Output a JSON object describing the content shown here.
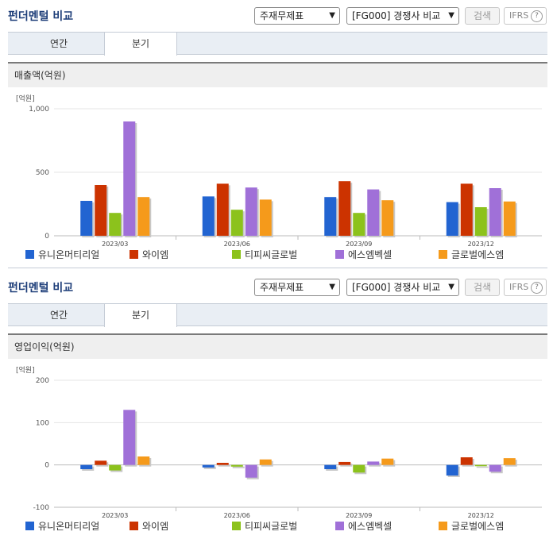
{
  "sections": [
    {
      "header": {
        "title": "펀더멘털 비교",
        "select1": "주재무제표",
        "select2": "[FG000] 경쟁사 비교",
        "search_label": "검색",
        "ifrs_label": "IFRS",
        "help": "?"
      },
      "tabs": [
        {
          "label": "연간",
          "active": false
        },
        {
          "label": "분기",
          "active": true
        }
      ],
      "subtitle": "매출액(억원)",
      "chart_data": {
        "type": "bar",
        "unit_label": "[억원]",
        "categories": [
          "2023/03",
          "2023/06",
          "2023/09",
          "2023/12"
        ],
        "ylim": [
          0,
          1000
        ],
        "yticks": [
          0,
          500,
          1000
        ],
        "ytick_labels": [
          "0",
          "500",
          "1,000"
        ],
        "legend_position": "bottom",
        "series": [
          {
            "name": "유니온머티리얼",
            "color": "#2264d1",
            "values": [
              275,
              310,
              305,
              265
            ]
          },
          {
            "name": "와이엠",
            "color": "#cc3300",
            "values": [
              400,
              410,
              430,
              410
            ]
          },
          {
            "name": "티피씨글로벌",
            "color": "#8cc21c",
            "values": [
              180,
              205,
              180,
              225
            ]
          },
          {
            "name": "에스엠벡셀",
            "color": "#a070d8",
            "values": [
              900,
              380,
              365,
              375
            ]
          },
          {
            "name": "글로벌에스엠",
            "color": "#f59a1b",
            "values": [
              305,
              285,
              280,
              270
            ]
          }
        ]
      }
    },
    {
      "header": {
        "title": "펀더멘털 비교",
        "select1": "주재무제표",
        "select2": "[FG000] 경쟁사 비교",
        "search_label": "검색",
        "ifrs_label": "IFRS",
        "help": "?"
      },
      "tabs": [
        {
          "label": "연간",
          "active": false
        },
        {
          "label": "분기",
          "active": true
        }
      ],
      "subtitle": "영업이익(억원)",
      "chart_data": {
        "type": "bar",
        "unit_label": "[억원]",
        "categories": [
          "2023/03",
          "2023/06",
          "2023/09",
          "2023/12"
        ],
        "ylim": [
          -100,
          200
        ],
        "yticks": [
          -100,
          0,
          100,
          200
        ],
        "ytick_labels": [
          "-100",
          "0",
          "100",
          "200"
        ],
        "legend_position": "bottom",
        "series": [
          {
            "name": "유니온머티리얼",
            "color": "#2264d1",
            "values": [
              -10,
              -6,
              -10,
              -25
            ]
          },
          {
            "name": "와이엠",
            "color": "#cc3300",
            "values": [
              10,
              5,
              7,
              18
            ]
          },
          {
            "name": "티피씨글로벌",
            "color": "#8cc21c",
            "values": [
              -13,
              -4,
              -18,
              -3
            ]
          },
          {
            "name": "에스엠벡셀",
            "color": "#a070d8",
            "values": [
              130,
              -30,
              8,
              -16
            ]
          },
          {
            "name": "글로벌에스엠",
            "color": "#f59a1b",
            "values": [
              20,
              13,
              15,
              16
            ]
          }
        ]
      }
    }
  ]
}
